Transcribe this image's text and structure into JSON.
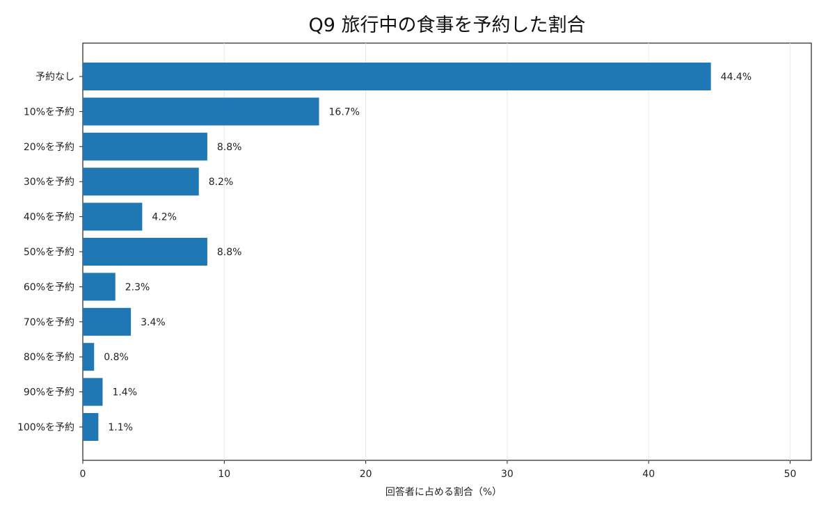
{
  "chart_data": {
    "type": "bar",
    "orientation": "horizontal",
    "title": "Q9 旅行中の食事を予約した割合",
    "xlabel": "回答者に占める割合（%）",
    "ylabel": "",
    "xlim": [
      0,
      51.5
    ],
    "xticks": [
      0,
      10,
      20,
      30,
      40,
      50
    ],
    "grid": "vertical",
    "categories": [
      "予約なし",
      "10%を予約",
      "20%を予約",
      "30%を予約",
      "40%を予約",
      "50%を予約",
      "60%を予約",
      "70%を予約",
      "80%を予約",
      "90%を予約",
      "100%を予約"
    ],
    "values": [
      44.4,
      16.7,
      8.8,
      8.2,
      4.2,
      8.8,
      2.3,
      3.4,
      0.8,
      1.4,
      1.1
    ],
    "value_labels": [
      "44.4%",
      "16.7%",
      "8.8%",
      "8.2%",
      "4.2%",
      "8.8%",
      "2.3%",
      "3.4%",
      "0.8%",
      "1.4%",
      "1.1%"
    ],
    "bar_color": "#1f77b4"
  }
}
